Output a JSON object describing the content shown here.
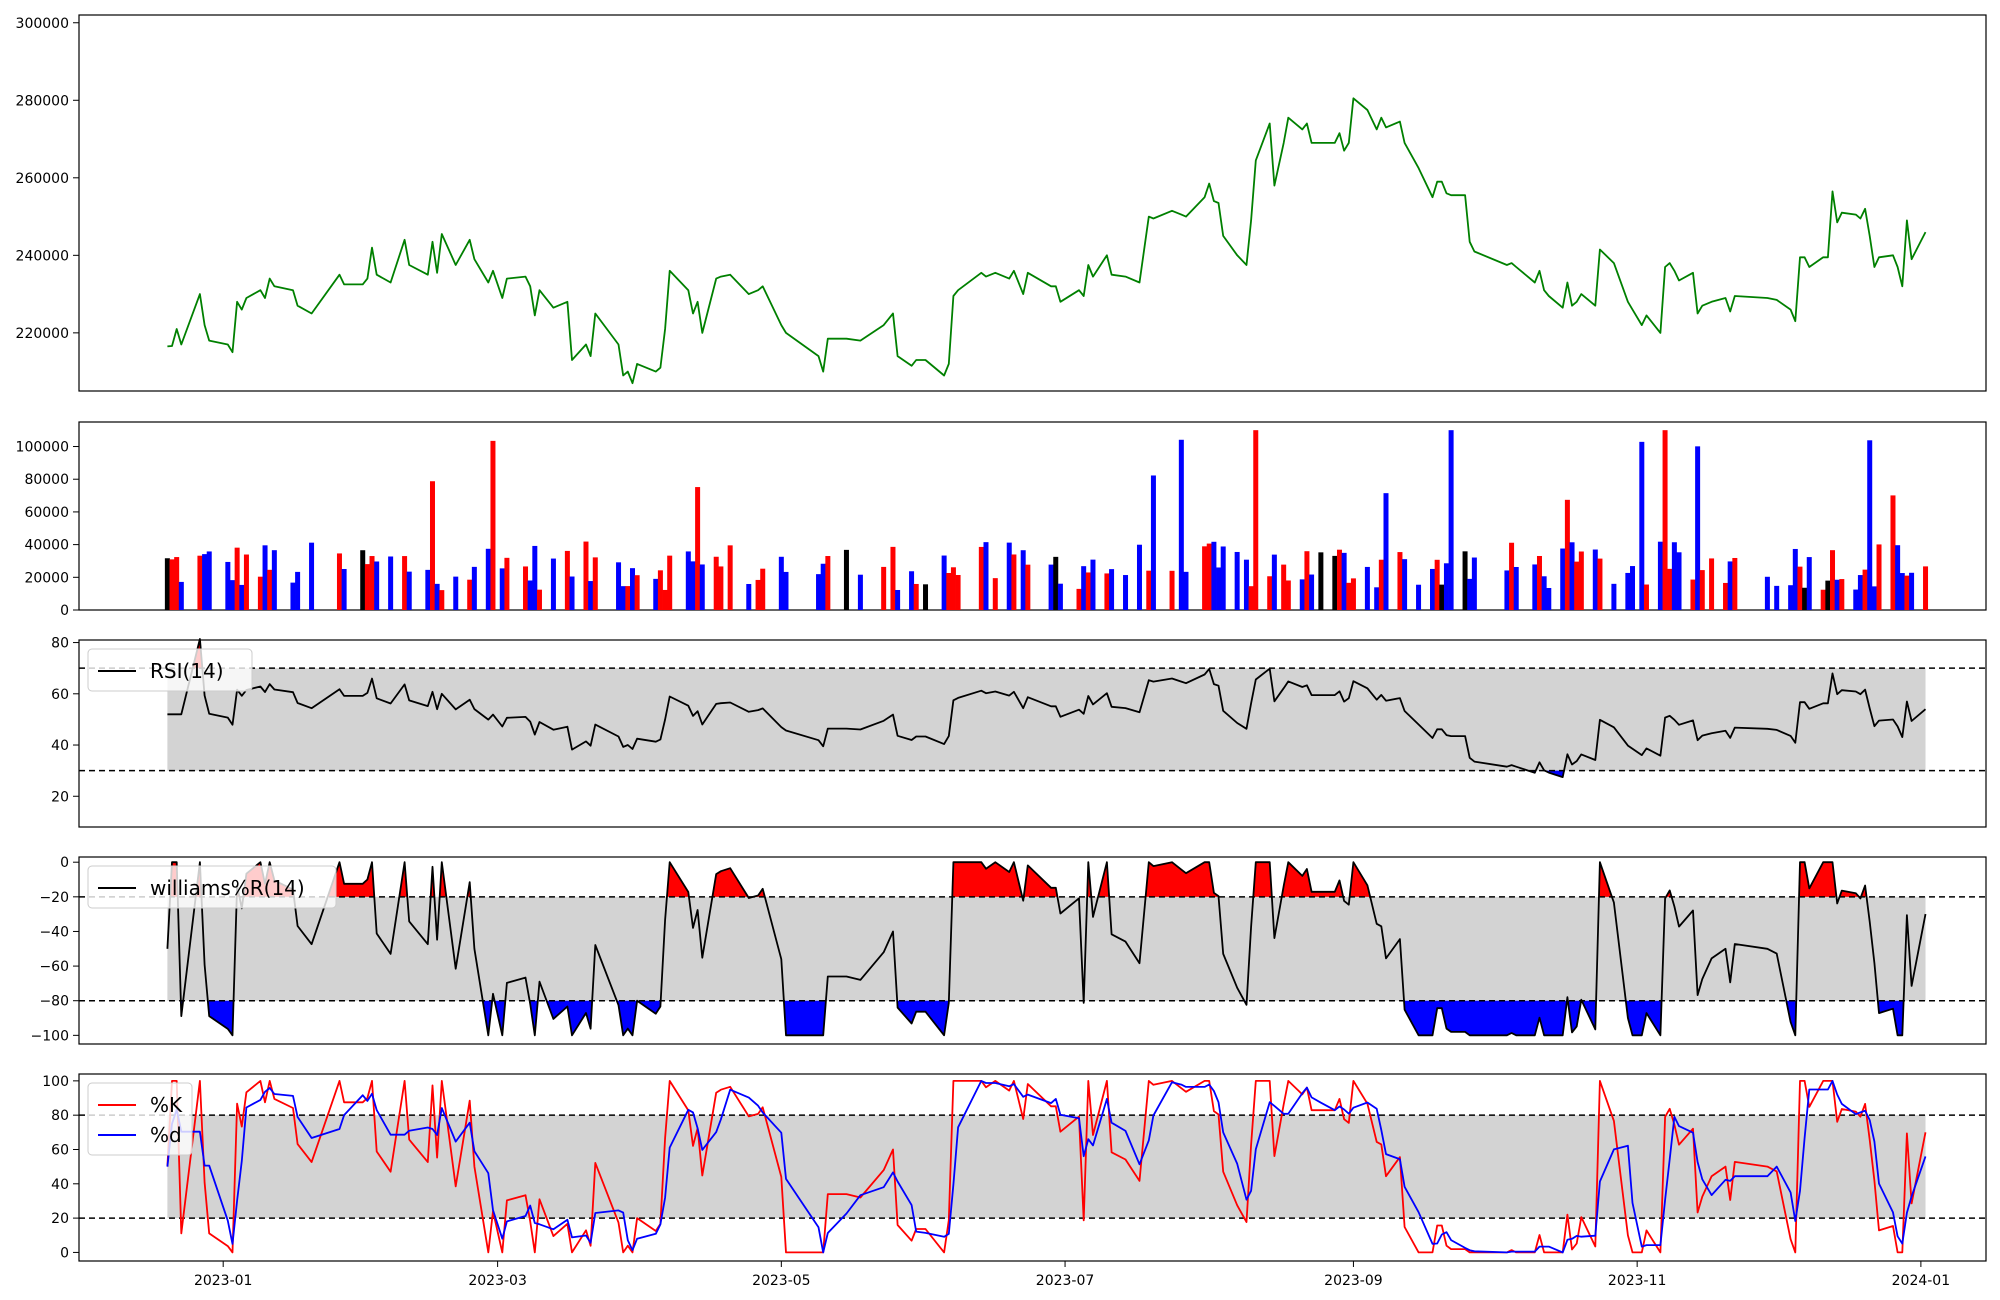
{
  "chart_data": [
    {
      "id": "price",
      "type": "line",
      "color": "#008000",
      "ylim": [
        205000,
        302000
      ],
      "yticks": [
        220000,
        240000,
        260000,
        280000,
        300000
      ],
      "ytick_labels": [
        "220000",
        "240000",
        "260000",
        "280000",
        "300000"
      ],
      "series": [
        {
          "points": [
            [
              "2022-12-20",
              216500
            ],
            [
              "2022-12-21",
              216600
            ],
            [
              "2022-12-22",
              221000
            ],
            [
              "2022-12-23",
              217000
            ],
            [
              "2022-12-27",
              230000
            ],
            [
              "2022-12-28",
              222000
            ],
            [
              "2022-12-29",
              218000
            ],
            [
              "2023-01-02",
              217000
            ],
            [
              "2023-01-03",
              215000
            ],
            [
              "2023-01-04",
              228000
            ],
            [
              "2023-01-05",
              226000
            ],
            [
              "2023-01-06",
              229000
            ],
            [
              "2023-01-09",
              231000
            ],
            [
              "2023-01-10",
              229000
            ],
            [
              "2023-01-11",
              234000
            ],
            [
              "2023-01-12",
              232000
            ],
            [
              "2023-01-16",
              231000
            ],
            [
              "2023-01-17",
              227000
            ],
            [
              "2023-01-20",
              225000
            ],
            [
              "2023-01-26",
              235000
            ],
            [
              "2023-01-27",
              232500
            ],
            [
              "2023-01-31",
              232500
            ],
            [
              "2023-02-01",
              234000
            ],
            [
              "2023-02-02",
              242000
            ],
            [
              "2023-02-03",
              235000
            ],
            [
              "2023-02-06",
              233000
            ],
            [
              "2023-02-09",
              244000
            ],
            [
              "2023-02-10",
              237500
            ],
            [
              "2023-02-14",
              235000
            ],
            [
              "2023-02-15",
              243500
            ],
            [
              "2023-02-16",
              235500
            ],
            [
              "2023-02-17",
              245500
            ],
            [
              "2023-02-20",
              237500
            ],
            [
              "2023-02-23",
              244000
            ],
            [
              "2023-02-24",
              239000
            ],
            [
              "2023-02-27",
              233000
            ],
            [
              "2023-02-28",
              236000
            ],
            [
              "2023-03-02",
              229000
            ],
            [
              "2023-03-03",
              234000
            ],
            [
              "2023-03-07",
              234500
            ],
            [
              "2023-03-08",
              232000
            ],
            [
              "2023-03-09",
              224500
            ],
            [
              "2023-03-10",
              231000
            ],
            [
              "2023-03-13",
              226500
            ],
            [
              "2023-03-16",
              228000
            ],
            [
              "2023-03-17",
              213000
            ],
            [
              "2023-03-20",
              217000
            ],
            [
              "2023-03-21",
              214000
            ],
            [
              "2023-03-22",
              225000
            ],
            [
              "2023-03-27",
              217000
            ],
            [
              "2023-03-28",
              209000
            ],
            [
              "2023-03-29",
              210000
            ],
            [
              "2023-03-30",
              207000
            ],
            [
              "2023-03-31",
              212000
            ],
            [
              "2023-04-04",
              210000
            ],
            [
              "2023-04-05",
              211000
            ],
            [
              "2023-04-06",
              221000
            ],
            [
              "2023-04-07",
              236000
            ],
            [
              "2023-04-11",
              231000
            ],
            [
              "2023-04-12",
              225000
            ],
            [
              "2023-04-13",
              228000
            ],
            [
              "2023-04-14",
              220000
            ],
            [
              "2023-04-17",
              234000
            ],
            [
              "2023-04-18",
              234500
            ],
            [
              "2023-04-20",
              235000
            ],
            [
              "2023-04-24",
              230000
            ],
            [
              "2023-04-26",
              231000
            ],
            [
              "2023-04-27",
              232000
            ],
            [
              "2023-05-01",
              222000
            ],
            [
              "2023-05-02",
              220000
            ],
            [
              "2023-05-09",
              214000
            ],
            [
              "2023-05-10",
              210000
            ],
            [
              "2023-05-11",
              218500
            ],
            [
              "2023-05-15",
              218500
            ],
            [
              "2023-05-18",
              218000
            ],
            [
              "2023-05-23",
              222000
            ],
            [
              "2023-05-25",
              225000
            ],
            [
              "2023-05-26",
              214000
            ],
            [
              "2023-05-29",
              211500
            ],
            [
              "2023-05-30",
              213000
            ],
            [
              "2023-06-01",
              213000
            ],
            [
              "2023-06-05",
              209000
            ],
            [
              "2023-06-06",
              212000
            ],
            [
              "2023-06-07",
              229500
            ],
            [
              "2023-06-08",
              231000
            ],
            [
              "2023-06-13",
              235500
            ],
            [
              "2023-06-14",
              234500
            ],
            [
              "2023-06-16",
              235500
            ],
            [
              "2023-06-19",
              234000
            ],
            [
              "2023-06-20",
              236000
            ],
            [
              "2023-06-22",
              230000
            ],
            [
              "2023-06-23",
              235500
            ],
            [
              "2023-06-28",
              232000
            ],
            [
              "2023-06-29",
              232000
            ],
            [
              "2023-06-30",
              228000
            ],
            [
              "2023-07-04",
              231000
            ],
            [
              "2023-07-05",
              229500
            ],
            [
              "2023-07-06",
              237500
            ],
            [
              "2023-07-07",
              234500
            ],
            [
              "2023-07-10",
              240000
            ],
            [
              "2023-07-11",
              235000
            ],
            [
              "2023-07-14",
              234500
            ],
            [
              "2023-07-17",
              233000
            ],
            [
              "2023-07-19",
              250000
            ],
            [
              "2023-07-20",
              249500
            ],
            [
              "2023-07-24",
              251500
            ],
            [
              "2023-07-26",
              250500
            ],
            [
              "2023-07-27",
              250000
            ],
            [
              "2023-07-31",
              255000
            ],
            [
              "2023-08-01",
              258500
            ],
            [
              "2023-08-02",
              254000
            ],
            [
              "2023-08-03",
              253500
            ],
            [
              "2023-08-04",
              245000
            ],
            [
              "2023-08-07",
              240000
            ],
            [
              "2023-08-09",
              237500
            ],
            [
              "2023-08-10",
              249000
            ],
            [
              "2023-08-11",
              264500
            ],
            [
              "2023-08-14",
              274000
            ],
            [
              "2023-08-15",
              258000
            ],
            [
              "2023-08-17",
              269000
            ],
            [
              "2023-08-18",
              275500
            ],
            [
              "2023-08-21",
              272500
            ],
            [
              "2023-08-22",
              274000
            ],
            [
              "2023-08-23",
              269000
            ],
            [
              "2023-08-25",
              269000
            ],
            [
              "2023-08-28",
              269000
            ],
            [
              "2023-08-29",
              271500
            ],
            [
              "2023-08-30",
              267000
            ],
            [
              "2023-08-31",
              269000
            ],
            [
              "2023-09-01",
              280500
            ],
            [
              "2023-09-04",
              277500
            ],
            [
              "2023-09-06",
              272500
            ],
            [
              "2023-09-07",
              275500
            ],
            [
              "2023-09-08",
              273000
            ],
            [
              "2023-09-11",
              274500
            ],
            [
              "2023-09-12",
              269000
            ],
            [
              "2023-09-15",
              262500
            ],
            [
              "2023-09-18",
              255000
            ],
            [
              "2023-09-19",
              259000
            ],
            [
              "2023-09-20",
              259000
            ],
            [
              "2023-09-21",
              256000
            ],
            [
              "2023-09-22",
              255500
            ],
            [
              "2023-09-25",
              255500
            ],
            [
              "2023-09-26",
              243500
            ],
            [
              "2023-09-27",
              241000
            ],
            [
              "2023-10-04",
              237500
            ],
            [
              "2023-10-05",
              238000
            ],
            [
              "2023-10-06",
              237000
            ],
            [
              "2023-10-10",
              233000
            ],
            [
              "2023-10-11",
              236000
            ],
            [
              "2023-10-12",
              231000
            ],
            [
              "2023-10-13",
              229500
            ],
            [
              "2023-10-16",
              226500
            ],
            [
              "2023-10-17",
              233000
            ],
            [
              "2023-10-18",
              227000
            ],
            [
              "2023-10-19",
              228000
            ],
            [
              "2023-10-20",
              230000
            ],
            [
              "2023-10-23",
              227000
            ],
            [
              "2023-10-24",
              241500
            ],
            [
              "2023-10-27",
              238000
            ],
            [
              "2023-10-30",
              228000
            ],
            [
              "2023-10-31",
              226000
            ],
            [
              "2023-11-02",
              222000
            ],
            [
              "2023-11-03",
              224500
            ],
            [
              "2023-11-06",
              220000
            ],
            [
              "2023-11-07",
              237000
            ],
            [
              "2023-11-08",
              238000
            ],
            [
              "2023-11-09",
              236000
            ],
            [
              "2023-11-10",
              233500
            ],
            [
              "2023-11-13",
              235500
            ],
            [
              "2023-11-14",
              225000
            ],
            [
              "2023-11-15",
              227000
            ],
            [
              "2023-11-17",
              228000
            ],
            [
              "2023-11-20",
              229000
            ],
            [
              "2023-11-21",
              225500
            ],
            [
              "2023-11-22",
              229500
            ],
            [
              "2023-11-29",
              229000
            ],
            [
              "2023-12-01",
              228500
            ],
            [
              "2023-12-04",
              226000
            ],
            [
              "2023-12-05",
              223000
            ],
            [
              "2023-12-06",
              239500
            ],
            [
              "2023-12-07",
              239500
            ],
            [
              "2023-12-08",
              237000
            ],
            [
              "2023-12-11",
              239500
            ],
            [
              "2023-12-12",
              239500
            ],
            [
              "2023-12-13",
              256500
            ],
            [
              "2023-12-14",
              248500
            ],
            [
              "2023-12-15",
              251000
            ],
            [
              "2023-12-18",
              250500
            ],
            [
              "2023-12-19",
              249500
            ],
            [
              "2023-12-20",
              252000
            ],
            [
              "2023-12-21",
              245000
            ],
            [
              "2023-12-22",
              237000
            ],
            [
              "2023-12-23",
              239500
            ],
            [
              "2023-12-26",
              240000
            ],
            [
              "2023-12-27",
              237000
            ],
            [
              "2023-12-28",
              232000
            ],
            [
              "2023-12-29",
              249000
            ],
            [
              "2023-12-30",
              239000
            ],
            [
              "2024-01-02",
              246000
            ]
          ]
        }
      ]
    },
    {
      "id": "volume",
      "type": "bar",
      "ylim": [
        0,
        115000
      ],
      "yticks": [
        0,
        20000,
        40000,
        60000,
        80000,
        100000
      ],
      "ytick_labels": [
        "0",
        "20000",
        "40000",
        "60000",
        "80000",
        "100000"
      ],
      "colors": {
        "up": "#ff0000",
        "down": "#0000ff",
        "flat": "#000000"
      }
    },
    {
      "id": "rsi",
      "type": "line",
      "ylim": [
        8,
        81
      ],
      "yticks": [
        20,
        40,
        60,
        80
      ],
      "ytick_labels": [
        "20",
        "40",
        "60",
        "80"
      ],
      "hlines": [
        30,
        70
      ],
      "band": [
        30,
        70
      ],
      "legend": [
        "RSI(14)"
      ],
      "legend_colors": [
        "#000000"
      ],
      "legend_position": "upper left"
    },
    {
      "id": "williams",
      "type": "line",
      "ylim": [
        -105,
        3
      ],
      "yticks": [
        0,
        -20,
        -40,
        -60,
        -80,
        -100
      ],
      "ytick_labels": [
        "0",
        "−20",
        "−40",
        "−60",
        "−80",
        "−100"
      ],
      "hlines": [
        -20,
        -80
      ],
      "band": [
        -80,
        -20
      ],
      "legend": [
        "williams%R(14)"
      ],
      "legend_colors": [
        "#000000"
      ],
      "legend_position": "upper left"
    },
    {
      "id": "stoch",
      "type": "line",
      "ylim": [
        -5,
        104
      ],
      "yticks": [
        0,
        20,
        40,
        60,
        80,
        100
      ],
      "ytick_labels": [
        "0",
        "20",
        "40",
        "60",
        "80",
        "100"
      ],
      "hlines": [
        20,
        80
      ],
      "band": [
        20,
        80
      ],
      "legend": [
        "%K",
        "%d"
      ],
      "legend_colors": [
        "#ff0000",
        "#0000ff"
      ],
      "legend_position": "upper left",
      "xlim": [
        "2022-12-01",
        "2024-01-15"
      ],
      "xticks": [
        "2023-01-01",
        "2023-03-01",
        "2023-05-01",
        "2023-07-01",
        "2023-09-01",
        "2023-11-01",
        "2024-01-01"
      ],
      "xtick_labels": [
        "2023-01",
        "2023-03",
        "2023-05",
        "2023-07",
        "2023-09",
        "2023-11",
        "2024-01"
      ]
    }
  ]
}
